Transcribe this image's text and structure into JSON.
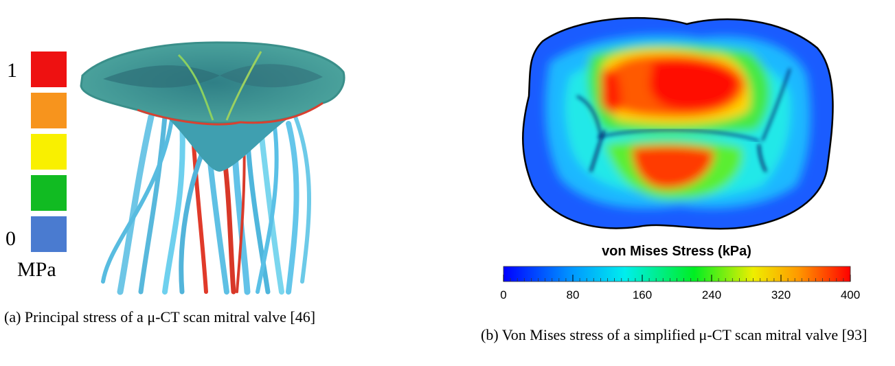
{
  "figure_a": {
    "legend": {
      "max": 1,
      "min": 0,
      "unit": "MPa"
    },
    "caption": "(a) Principal stress of a μ-CT scan mitral valve [46]"
  },
  "figure_b": {
    "colorbar": {
      "title": "von Mises Stress (kPa)",
      "range": [
        0,
        400
      ],
      "ticks": [
        0,
        80,
        160,
        240,
        320,
        400
      ]
    },
    "caption": "(b) Von Mises stress of a simplified μ-CT scan mitral valve [93]"
  }
}
